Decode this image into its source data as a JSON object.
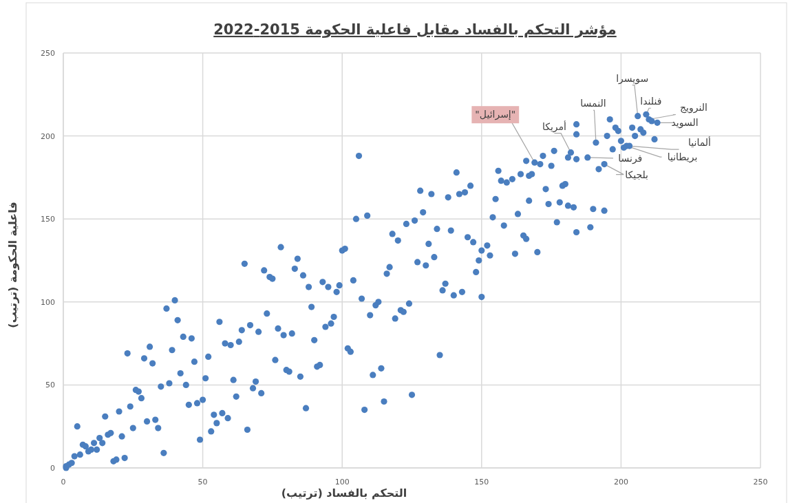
{
  "chart_data": {
    "type": "scatter",
    "title": "مؤشر التحكم بالفساد مقابل  فاعلية الحكومة  2015-2022",
    "xlabel": "التحكم بالفساد (ترتيب)",
    "ylabel": "فاعلية الحكومة (ترتيب)",
    "color": "#4a7ebf",
    "marker": "circle",
    "grid": true,
    "xlim": [
      0,
      250
    ],
    "ylim": [
      0,
      250
    ],
    "xticks": [
      0,
      50,
      100,
      150,
      200,
      250
    ],
    "yticks": [
      0,
      50,
      100,
      150,
      200,
      250
    ],
    "x": [
      1,
      1,
      2,
      3,
      4,
      6,
      5,
      7,
      8,
      9,
      10,
      11,
      12,
      13,
      14,
      16,
      17,
      15,
      18,
      19,
      20,
      21,
      22,
      23,
      24,
      25,
      26,
      27,
      28,
      29,
      30,
      31,
      32,
      33,
      34,
      35,
      36,
      37,
      38,
      39,
      40,
      41,
      42,
      43,
      44,
      45,
      46,
      47,
      48,
      49,
      50,
      51,
      52,
      53,
      54,
      55,
      56,
      57,
      58,
      59,
      60,
      61,
      62,
      63,
      64,
      65,
      66,
      67,
      68,
      69,
      70,
      71,
      72,
      73,
      74,
      75,
      76,
      77,
      78,
      79,
      80,
      81,
      82,
      83,
      84,
      85,
      86,
      87,
      88,
      89,
      90,
      91,
      92,
      93,
      94,
      95,
      96,
      97,
      98,
      99,
      100,
      101,
      102,
      103,
      104,
      106,
      105,
      107,
      108,
      109,
      110,
      111,
      112,
      113,
      114,
      115,
      116,
      117,
      118,
      119,
      120,
      121,
      122,
      123,
      124,
      125,
      126,
      127,
      128,
      129,
      130,
      131,
      132,
      133,
      134,
      135,
      136,
      137,
      138,
      139,
      140,
      141,
      142,
      143,
      144,
      145,
      146,
      147,
      148,
      149,
      150,
      150,
      152,
      153,
      154,
      155,
      156,
      157,
      158,
      159,
      161,
      162,
      163,
      164,
      165,
      166,
      167,
      166,
      167,
      168,
      170,
      171,
      172,
      173,
      174,
      175,
      176,
      177,
      178,
      179,
      180,
      181,
      182,
      183,
      184,
      184,
      184,
      184,
      188,
      189,
      190,
      191,
      192,
      194,
      194,
      195,
      196,
      197,
      198,
      199,
      200,
      201,
      202,
      203,
      204,
      205,
      206,
      207,
      208,
      209,
      210,
      211,
      212,
      213,
      169,
      181
    ],
    "values": [
      0,
      1,
      2,
      3,
      7,
      8,
      25,
      14,
      13,
      10,
      11,
      15,
      11,
      18,
      15,
      20,
      21,
      31,
      4,
      5,
      34,
      19,
      6,
      69,
      37,
      24,
      47,
      46,
      42,
      66,
      28,
      73,
      63,
      29,
      24,
      49,
      9,
      96,
      51,
      71,
      101,
      89,
      57,
      79,
      50,
      38,
      78,
      64,
      39,
      17,
      41,
      54,
      67,
      22,
      32,
      27,
      88,
      33,
      75,
      30,
      74,
      53,
      43,
      76,
      83,
      123,
      23,
      86,
      48,
      52,
      82,
      45,
      119,
      93,
      115,
      114,
      65,
      84,
      133,
      80,
      59,
      58,
      81,
      120,
      126,
      55,
      116,
      36,
      109,
      97,
      77,
      61,
      62,
      112,
      85,
      109,
      87,
      91,
      106,
      110,
      131,
      132,
      72,
      70,
      113,
      188,
      150,
      102,
      35,
      152,
      92,
      56,
      98,
      100,
      60,
      40,
      117,
      121,
      141,
      90,
      137,
      95,
      94,
      147,
      99,
      44,
      149,
      124,
      167,
      154,
      122,
      135,
      165,
      127,
      144,
      68,
      107,
      111,
      163,
      143,
      104,
      178,
      165,
      106,
      166,
      139,
      170,
      136,
      118,
      125,
      131,
      103,
      134,
      128,
      151,
      162,
      179,
      173,
      146,
      172,
      174,
      129,
      153,
      177,
      140,
      138,
      161,
      185,
      176,
      177,
      130,
      183,
      188,
      168,
      159,
      182,
      191,
      148,
      160,
      170,
      171,
      158,
      190,
      157,
      186,
      142,
      207,
      201,
      187,
      145,
      156,
      196,
      180,
      155,
      183,
      200,
      210,
      192,
      205,
      203,
      197,
      193,
      194,
      194,
      205,
      200,
      212,
      204,
      202,
      213,
      210,
      209,
      198,
      208,
      184,
      187
    ],
    "annotations": [
      {
        "text": "سويسرا",
        "x": 206,
        "y": 212
      },
      {
        "text": "فنلندا",
        "x": 209,
        "y": 213
      },
      {
        "text": "النرويج",
        "x": 210,
        "y": 210
      },
      {
        "text": "السويد",
        "x": 213,
        "y": 208
      },
      {
        "text": "ألمانيا",
        "x": 203,
        "y": 194
      },
      {
        "text": "بريطانيا",
        "x": 202,
        "y": 194
      },
      {
        "text": "فرنسا",
        "x": 188,
        "y": 187
      },
      {
        "text": "بلجيكا",
        "x": 194,
        "y": 183
      },
      {
        "text": "النمسا",
        "x": 191,
        "y": 196
      },
      {
        "text": "أمريكا",
        "x": 182,
        "y": 190
      },
      {
        "text": "\"إسرائيل\"",
        "x": 169,
        "y": 184
      }
    ]
  }
}
